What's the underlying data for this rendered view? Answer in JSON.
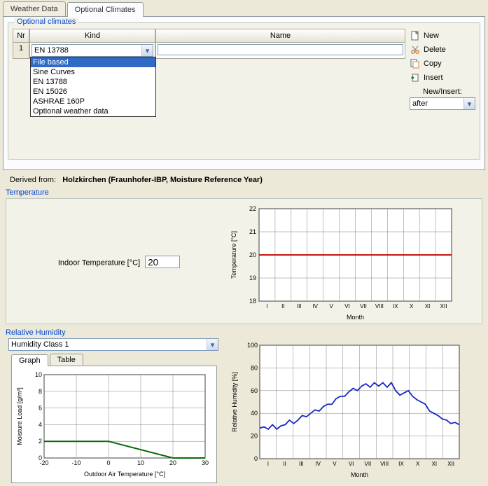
{
  "tabs": {
    "weather_data": "Weather Data",
    "optional_climates": "Optional Climates"
  },
  "groupbox_title": "Optional climates",
  "grid": {
    "headers": {
      "nr": "Nr",
      "kind": "Kind",
      "name": "Name"
    },
    "row": {
      "nr": "1",
      "kind": "EN 13788",
      "name": ""
    },
    "kind_options": [
      "File based",
      "Sine Curves",
      "EN 13788",
      "EN 15026",
      "ASHRAE 160P",
      "Optional weather data"
    ],
    "selected_option_index": 0
  },
  "actions": {
    "new": "New",
    "delete": "Delete",
    "copy": "Copy",
    "insert": "Insert",
    "newinsert_label": "New/Insert:",
    "newinsert_value": "after"
  },
  "derived": {
    "label": "Derived from:",
    "value": "Holzkirchen (Fraunhofer-IBP, Moisture Reference Year)"
  },
  "temperature": {
    "title": "Temperature",
    "input_label": "Indoor Temperature  [°C]",
    "input_value": "20",
    "chart": {
      "ylabel": "Temperature [°C]",
      "xlabel": "Month",
      "ymin": 18,
      "ymax": 22,
      "ystep": 1,
      "months": [
        "I",
        "II",
        "III",
        "IV",
        "V",
        "VI",
        "VII",
        "VIII",
        "IX",
        "X",
        "XI",
        "XII"
      ],
      "line_value": 20,
      "line_color": "#c81414",
      "grid_color": "#808080",
      "bg": "#ffffff"
    }
  },
  "humidity": {
    "title": "Relative Humidity",
    "class_value": "Humidity Class 1",
    "subtabs": {
      "graph": "Graph",
      "table": "Table"
    },
    "moisture_chart": {
      "ylabel": "Moisture Load [g/m³]",
      "xlabel": "Outdoor Air Temperature [°C]",
      "xmin": -20,
      "xmax": 30,
      "xstep": 10,
      "ymin": 0,
      "ymax": 10,
      "ystep": 2,
      "grid_color": "#808080",
      "line_color": "#0a6b0a",
      "points": [
        [
          -20,
          2
        ],
        [
          0,
          2
        ],
        [
          20,
          0
        ],
        [
          30,
          0
        ]
      ]
    },
    "rh_chart": {
      "ylabel": "Relative Humidity [%]",
      "xlabel": "Month",
      "ymin": 0,
      "ymax": 100,
      "ystep": 20,
      "months": [
        "I",
        "II",
        "III",
        "IV",
        "V",
        "VI",
        "VII",
        "VIII",
        "IX",
        "X",
        "XI",
        "XII"
      ],
      "grid_color": "#808080",
      "line_color": "#1826c3",
      "values": [
        27,
        28,
        26,
        30,
        26,
        29,
        30,
        34,
        31,
        34,
        38,
        37,
        40,
        43,
        42,
        46,
        48,
        48,
        53,
        55,
        55,
        59,
        62,
        60,
        64,
        66,
        63,
        67,
        64,
        67,
        63,
        67,
        60,
        56,
        58,
        60,
        55,
        52,
        50,
        48,
        42,
        40,
        38,
        35,
        34,
        31,
        32,
        30
      ]
    }
  },
  "colors": {
    "panel_bg": "#ece9d8",
    "group_bg": "#f3f2e9",
    "blue_label": "#0046d5"
  }
}
